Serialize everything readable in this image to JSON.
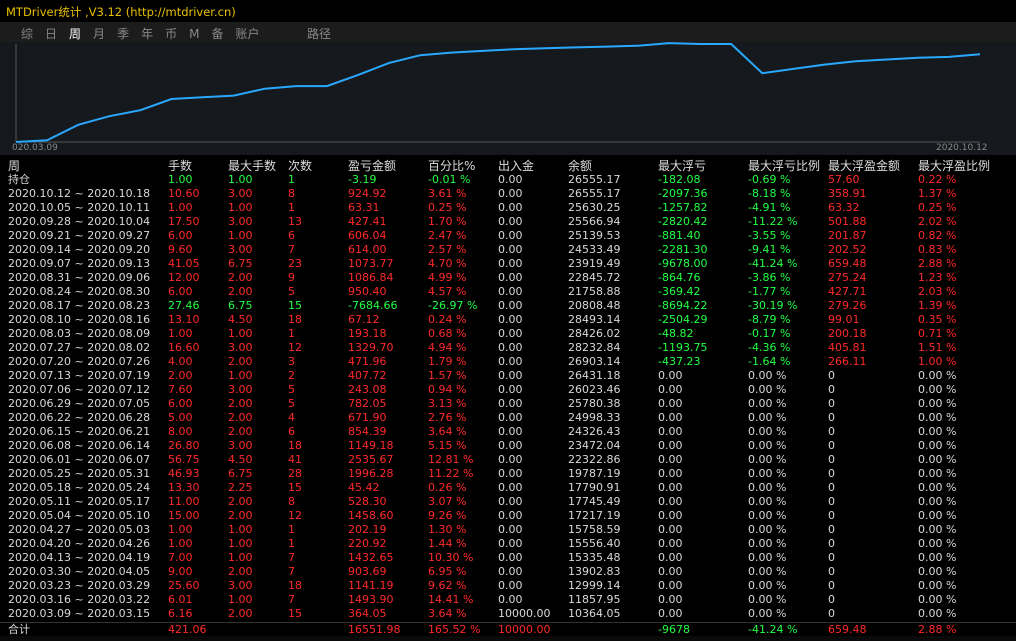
{
  "app_title": "MTDriver统计 ,V3.12 (http://mtdriver.cn)",
  "tabs": [
    "综",
    "日",
    "周",
    "月",
    "季",
    "年",
    "币",
    "M",
    "备",
    "账户"
  ],
  "active_tab": 2,
  "path_label": "路径",
  "chart_data": {
    "type": "line",
    "title": "",
    "x_start_label": "020.03.09",
    "x_end_label": "2020.10.12",
    "color": "#2aa8ff",
    "values": [
      0,
      2,
      20,
      30,
      37,
      50,
      52,
      54,
      62,
      65,
      65,
      78,
      92,
      101,
      104,
      106,
      108,
      109,
      110,
      111,
      112,
      115,
      114,
      114,
      80,
      85,
      90,
      94,
      96,
      98,
      99,
      102
    ],
    "ylim": [
      0,
      114
    ]
  },
  "columns": [
    "周",
    "手数",
    "最大手数",
    "次数",
    "盈亏金额",
    "百分比%",
    "出入金",
    "余额",
    "最大浮亏",
    "最大浮亏比例",
    "最大浮盈金额",
    "最大浮盈比例"
  ],
  "rows": [
    {
      "c": [
        "持仓",
        "1.00",
        "1.00",
        "1",
        "-3.19",
        "-0.01 %",
        "0.00",
        "26555.17",
        "-182.08",
        "-0.69 %",
        "57.60",
        "0.22 %"
      ],
      "s": "g"
    },
    {
      "c": [
        "2020.10.12 ~ 2020.10.18",
        "10.60",
        "3.00",
        "8",
        "924.92",
        "3.61 %",
        "0.00",
        "26555.17",
        "-2097.36",
        "-8.18 %",
        "358.91",
        "1.37 %"
      ],
      "s": "r"
    },
    {
      "c": [
        "2020.10.05 ~ 2020.10.11",
        "1.00",
        "1.00",
        "1",
        "63.31",
        "0.25 %",
        "0.00",
        "25630.25",
        "-1257.82",
        "-4.91 %",
        "63.32",
        "0.25 %"
      ],
      "s": "r"
    },
    {
      "c": [
        "2020.09.28 ~ 2020.10.04",
        "17.50",
        "3.00",
        "13",
        "427.41",
        "1.70 %",
        "0.00",
        "25566.94",
        "-2820.42",
        "-11.22 %",
        "501.88",
        "2.02 %"
      ],
      "s": "r"
    },
    {
      "c": [
        "2020.09.21 ~ 2020.09.27",
        "6.00",
        "1.00",
        "6",
        "606.04",
        "2.47 %",
        "0.00",
        "25139.53",
        "-881.40",
        "-3.55 %",
        "201.87",
        "0.82 %"
      ],
      "s": "r"
    },
    {
      "c": [
        "2020.09.14 ~ 2020.09.20",
        "9.60",
        "3.00",
        "7",
        "614.00",
        "2.57 %",
        "0.00",
        "24533.49",
        "-2281.30",
        "-9.41 %",
        "202.52",
        "0.83 %"
      ],
      "s": "r"
    },
    {
      "c": [
        "2020.09.07 ~ 2020.09.13",
        "41.05",
        "6.75",
        "23",
        "1073.77",
        "4.70 %",
        "0.00",
        "23919.49",
        "-9678.00",
        "-41.24 %",
        "659.48",
        "2.88 %"
      ],
      "s": "r"
    },
    {
      "c": [
        "2020.08.31 ~ 2020.09.06",
        "12.00",
        "2.00",
        "9",
        "1086.84",
        "4.99 %",
        "0.00",
        "22845.72",
        "-864.76",
        "-3.86 %",
        "275.24",
        "1.23 %"
      ],
      "s": "r"
    },
    {
      "c": [
        "2020.08.24 ~ 2020.08.30",
        "6.00",
        "2.00",
        "5",
        "950.40",
        "4.57 %",
        "0.00",
        "21758.88",
        "-369.42",
        "-1.77 %",
        "427.71",
        "2.03 %"
      ],
      "s": "r"
    },
    {
      "c": [
        "2020.08.17 ~ 2020.08.23",
        "27.46",
        "6.75",
        "15",
        "-7684.66",
        "-26.97 %",
        "0.00",
        "20808.48",
        "-8694.22",
        "-30.19 %",
        "279.26",
        "1.39 %"
      ],
      "s": "g"
    },
    {
      "c": [
        "2020.08.10 ~ 2020.08.16",
        "13.10",
        "4.50",
        "18",
        "67.12",
        "0.24 %",
        "0.00",
        "28493.14",
        "-2504.29",
        "-8.79 %",
        "99.01",
        "0.35 %"
      ],
      "s": "r"
    },
    {
      "c": [
        "2020.08.03 ~ 2020.08.09",
        "1.00",
        "1.00",
        "1",
        "193.18",
        "0.68 %",
        "0.00",
        "28426.02",
        "-48.82",
        "-0.17 %",
        "200.18",
        "0.71 %"
      ],
      "s": "r"
    },
    {
      "c": [
        "2020.07.27 ~ 2020.08.02",
        "16.60",
        "3.00",
        "12",
        "1329.70",
        "4.94 %",
        "0.00",
        "28232.84",
        "-1193.75",
        "-4.36 %",
        "405.81",
        "1.51 %"
      ],
      "s": "r"
    },
    {
      "c": [
        "2020.07.20 ~ 2020.07.26",
        "4.00",
        "2.00",
        "3",
        "471.96",
        "1.79 %",
        "0.00",
        "26903.14",
        "-437.23",
        "-1.64 %",
        "266.11",
        "1.00 %"
      ],
      "s": "r"
    },
    {
      "c": [
        "2020.07.13 ~ 2020.07.19",
        "2.00",
        "1.00",
        "2",
        "407.72",
        "1.57 %",
        "0.00",
        "26431.18",
        "0.00",
        "0.00 %",
        "0",
        "0.00 %"
      ],
      "s": "r"
    },
    {
      "c": [
        "2020.07.06 ~ 2020.07.12",
        "7.60",
        "3.00",
        "5",
        "243.08",
        "0.94 %",
        "0.00",
        "26023.46",
        "0.00",
        "0.00 %",
        "0",
        "0.00 %"
      ],
      "s": "r"
    },
    {
      "c": [
        "2020.06.29 ~ 2020.07.05",
        "6.00",
        "2.00",
        "5",
        "782.05",
        "3.13 %",
        "0.00",
        "25780.38",
        "0.00",
        "0.00 %",
        "0",
        "0.00 %"
      ],
      "s": "r"
    },
    {
      "c": [
        "2020.06.22 ~ 2020.06.28",
        "5.00",
        "2.00",
        "4",
        "671.90",
        "2.76 %",
        "0.00",
        "24998.33",
        "0.00",
        "0.00 %",
        "0",
        "0.00 %"
      ],
      "s": "r"
    },
    {
      "c": [
        "2020.06.15 ~ 2020.06.21",
        "8.00",
        "2.00",
        "6",
        "854.39",
        "3.64 %",
        "0.00",
        "24326.43",
        "0.00",
        "0.00 %",
        "0",
        "0.00 %"
      ],
      "s": "r"
    },
    {
      "c": [
        "2020.06.08 ~ 2020.06.14",
        "26.80",
        "3.00",
        "18",
        "1149.18",
        "5.15 %",
        "0.00",
        "23472.04",
        "0.00",
        "0.00 %",
        "0",
        "0.00 %"
      ],
      "s": "r"
    },
    {
      "c": [
        "2020.06.01 ~ 2020.06.07",
        "56.75",
        "4.50",
        "41",
        "2535.67",
        "12.81 %",
        "0.00",
        "22322.86",
        "0.00",
        "0.00 %",
        "0",
        "0.00 %"
      ],
      "s": "r"
    },
    {
      "c": [
        "2020.05.25 ~ 2020.05.31",
        "46.93",
        "6.75",
        "28",
        "1996.28",
        "11.22 %",
        "0.00",
        "19787.19",
        "0.00",
        "0.00 %",
        "0",
        "0.00 %"
      ],
      "s": "r"
    },
    {
      "c": [
        "2020.05.18 ~ 2020.05.24",
        "13.30",
        "2.25",
        "15",
        "45.42",
        "0.26 %",
        "0.00",
        "17790.91",
        "0.00",
        "0.00 %",
        "0",
        "0.00 %"
      ],
      "s": "r"
    },
    {
      "c": [
        "2020.05.11 ~ 2020.05.17",
        "11.00",
        "2.00",
        "8",
        "528.30",
        "3.07 %",
        "0.00",
        "17745.49",
        "0.00",
        "0.00 %",
        "0",
        "0.00 %"
      ],
      "s": "r"
    },
    {
      "c": [
        "2020.05.04 ~ 2020.05.10",
        "15.00",
        "2.00",
        "12",
        "1458.60",
        "9.26 %",
        "0.00",
        "17217.19",
        "0.00",
        "0.00 %",
        "0",
        "0.00 %"
      ],
      "s": "r"
    },
    {
      "c": [
        "2020.04.27 ~ 2020.05.03",
        "1.00",
        "1.00",
        "1",
        "202.19",
        "1.30 %",
        "0.00",
        "15758.59",
        "0.00",
        "0.00 %",
        "0",
        "0.00 %"
      ],
      "s": "r"
    },
    {
      "c": [
        "2020.04.20 ~ 2020.04.26",
        "1.00",
        "1.00",
        "1",
        "220.92",
        "1.44 %",
        "0.00",
        "15556.40",
        "0.00",
        "0.00 %",
        "0",
        "0.00 %"
      ],
      "s": "r"
    },
    {
      "c": [
        "2020.04.13 ~ 2020.04.19",
        "7.00",
        "1.00",
        "7",
        "1432.65",
        "10.30 %",
        "0.00",
        "15335.48",
        "0.00",
        "0.00 %",
        "0",
        "0.00 %"
      ],
      "s": "r"
    },
    {
      "c": [
        "2020.03.30 ~ 2020.04.05",
        "9.00",
        "2.00",
        "7",
        "903.69",
        "6.95 %",
        "0.00",
        "13902.83",
        "0.00",
        "0.00 %",
        "0",
        "0.00 %"
      ],
      "s": "r"
    },
    {
      "c": [
        "2020.03.23 ~ 2020.03.29",
        "25.60",
        "3.00",
        "18",
        "1141.19",
        "9.62 %",
        "0.00",
        "12999.14",
        "0.00",
        "0.00 %",
        "0",
        "0.00 %"
      ],
      "s": "r"
    },
    {
      "c": [
        "2020.03.16 ~ 2020.03.22",
        "6.01",
        "1.00",
        "7",
        "1493.90",
        "14.41 %",
        "0.00",
        "11857.95",
        "0.00",
        "0.00 %",
        "0",
        "0.00 %"
      ],
      "s": "r"
    },
    {
      "c": [
        "2020.03.09 ~ 2020.03.15",
        "6.16",
        "2.00",
        "15",
        "364.05",
        "3.64 %",
        "10000.00",
        "10364.05",
        "0.00",
        "0.00 %",
        "0",
        "0.00 %"
      ],
      "s": "r"
    }
  ],
  "total": {
    "c": [
      "合计",
      "421.06",
      "",
      "",
      "16551.98",
      "165.52 %",
      "10000.00",
      "",
      "-9678",
      "-41.24 %",
      "659.48",
      "2.88 %"
    ]
  }
}
